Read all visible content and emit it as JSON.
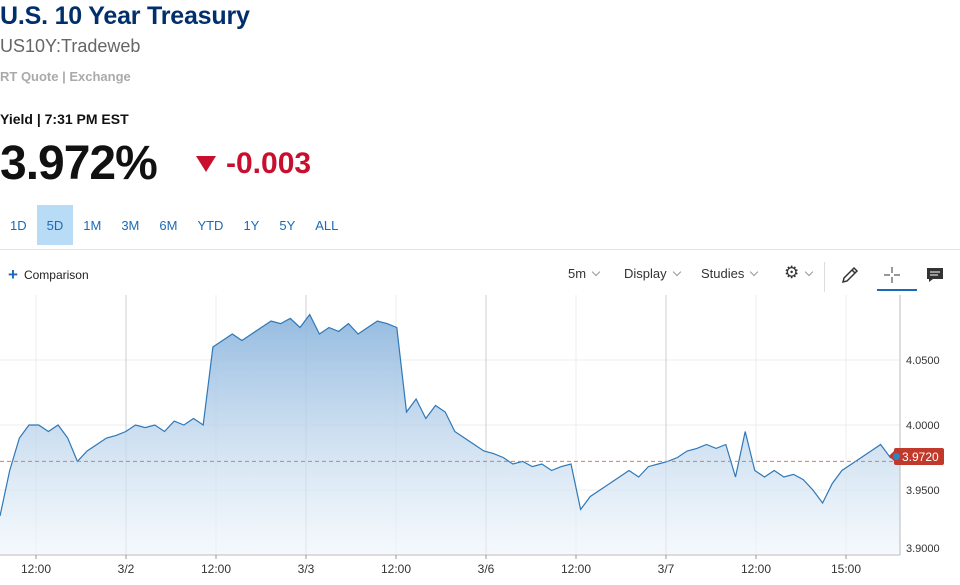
{
  "header": {
    "title": "U.S. 10 Year Treasury",
    "symbol": "US10Y:Tradeweb",
    "quote_source": "RT Quote | Exchange",
    "yield_label": "Yield | 7:31 PM EST",
    "price": "3.972%",
    "change": "-0.003"
  },
  "ranges": [
    "1D",
    "5D",
    "1M",
    "3M",
    "6M",
    "YTD",
    "1Y",
    "5Y",
    "ALL"
  ],
  "active_range": "5D",
  "toolbar": {
    "comparison_label": "Comparison",
    "interval": "5m",
    "display_label": "Display",
    "studies_label": "Studies",
    "icons": [
      "plus-icon",
      "gear-icon",
      "pencil-icon",
      "crosshair-icon",
      "comment-icon"
    ]
  },
  "colors": {
    "title": "#002f6c",
    "negative": "#c8102e",
    "accent": "#1a6ab8",
    "line": "#2e78b7",
    "price_tag": "#c0392b"
  },
  "chart_data": {
    "type": "area",
    "current_value_label": "3.9720",
    "current_value": 3.972,
    "y_ticks": [
      "4.0500",
      "4.0000",
      "3.9500",
      "3.9000"
    ],
    "ylim": [
      3.9,
      4.1
    ],
    "x_ticks": [
      "12:00",
      "3/2",
      "12:00",
      "3/3",
      "12:00",
      "3/6",
      "12:00",
      "3/7",
      "12:00",
      "15:00"
    ],
    "series": [
      {
        "values": [
          3.93,
          3.965,
          3.99,
          4.0,
          4.0,
          3.995,
          4.0,
          3.99,
          3.972,
          3.98,
          3.985,
          3.99,
          3.992,
          3.995,
          4.0,
          3.998,
          4.0,
          3.995,
          4.003,
          4.0,
          4.005,
          4.0,
          4.06,
          4.065,
          4.07,
          4.065,
          4.07,
          4.075,
          4.08,
          4.078,
          4.082,
          4.075,
          4.085,
          4.07,
          4.075,
          4.072,
          4.078,
          4.07,
          4.075,
          4.08,
          4.078,
          4.075,
          4.01,
          4.02,
          4.005,
          4.015,
          4.01,
          3.995,
          3.99,
          3.985,
          3.98,
          3.978,
          3.975,
          3.97,
          3.972,
          3.968,
          3.97,
          3.965,
          3.968,
          3.97,
          3.935,
          3.945,
          3.95,
          3.955,
          3.96,
          3.965,
          3.96,
          3.968,
          3.97,
          3.972,
          3.975,
          3.98,
          3.982,
          3.985,
          3.982,
          3.985,
          3.96,
          3.995,
          3.965,
          3.96,
          3.965,
          3.96,
          3.962,
          3.958,
          3.95,
          3.94,
          3.955,
          3.965,
          3.97,
          3.975,
          3.98,
          3.985,
          3.975,
          3.972
        ]
      }
    ]
  }
}
